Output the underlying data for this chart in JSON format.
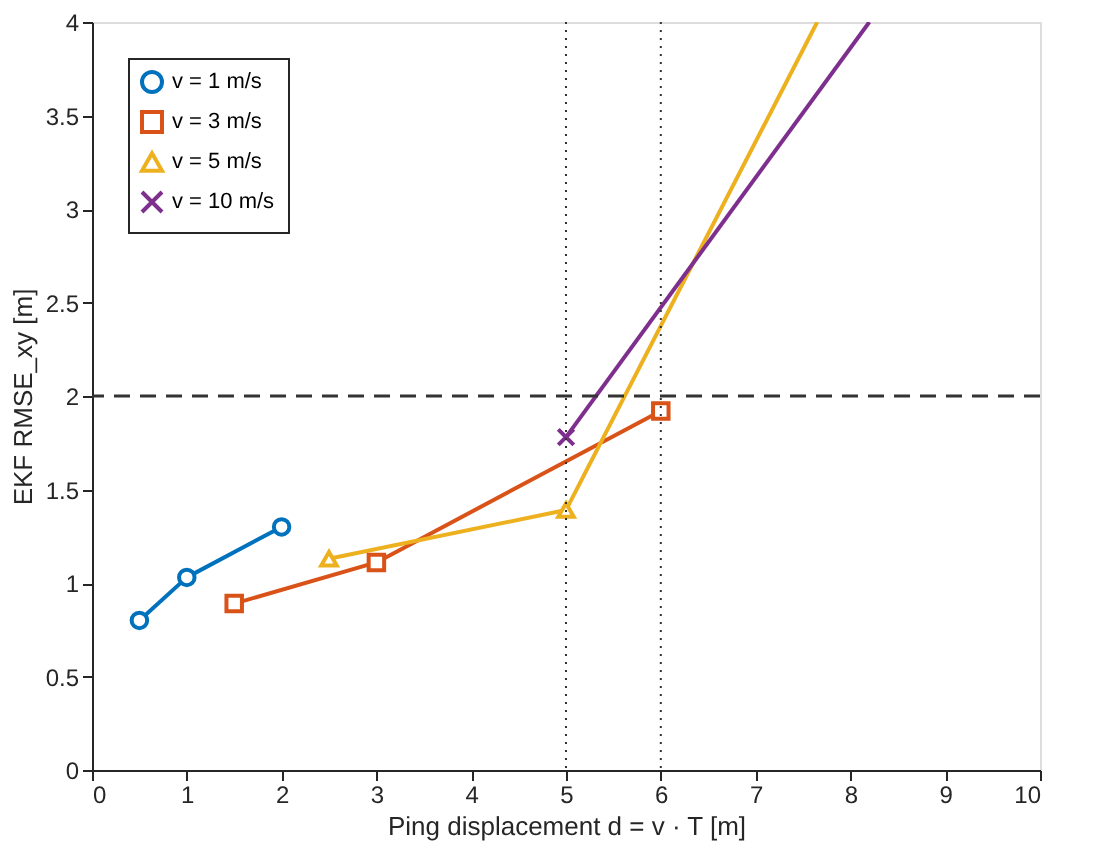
{
  "chart_data": {
    "type": "line",
    "xlabel": "Ping displacement d = v · T  [m]",
    "ylabel": "EKF RMSE_xy  [m]",
    "xlim": [
      0,
      10
    ],
    "xticks": [
      0,
      1,
      2,
      3,
      4,
      5,
      6,
      7,
      8,
      9,
      10
    ],
    "ylim": [
      0,
      4
    ],
    "yticks": [
      0,
      0.5,
      1,
      1.5,
      2,
      2.5,
      3,
      3.5,
      4
    ],
    "grid": false,
    "legend": "top left",
    "series": [
      {
        "name": "v = 1 m/s",
        "color": "#0072bd",
        "marker": "circle",
        "x": [
          0.5,
          1,
          2
        ],
        "values": [
          0.8,
          1.03,
          1.3
        ]
      },
      {
        "name": "v = 3 m/s",
        "color": "#d95319",
        "marker": "square",
        "x": [
          1.5,
          3,
          6
        ],
        "values": [
          0.89,
          1.11,
          1.92
        ]
      },
      {
        "name": "v = 5 m/s",
        "color": "#edb120",
        "marker": "triangle",
        "x": [
          2.5,
          5,
          7.65
        ],
        "values": [
          1.13,
          1.39,
          4
        ]
      },
      {
        "name": "v = 10 m/s",
        "color": "#7e2f8e",
        "marker": "cross",
        "x": [
          5,
          8.2
        ],
        "values": [
          1.78,
          4
        ]
      }
    ],
    "ref_lines": [
      {
        "axis": "y",
        "value": 2,
        "color": "#333333",
        "line_style": "dashed"
      },
      {
        "axis": "x",
        "value": 5,
        "color": "#333333",
        "line_style": "dotted"
      },
      {
        "axis": "x",
        "value": 6,
        "color": "#333333",
        "line_style": "dotted"
      }
    ]
  }
}
